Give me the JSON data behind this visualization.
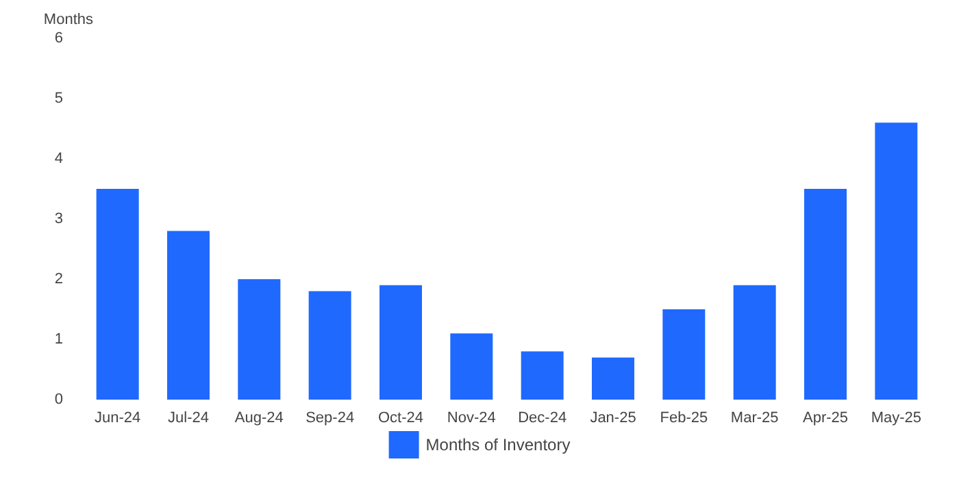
{
  "chart_data": {
    "type": "bar",
    "ylabel": "Months",
    "categories": [
      "Jun-24",
      "Jul-24",
      "Aug-24",
      "Sep-24",
      "Oct-24",
      "Nov-24",
      "Dec-24",
      "Jan-25",
      "Feb-25",
      "Mar-25",
      "Apr-25",
      "May-25"
    ],
    "series": [
      {
        "name": "Months of Inventory",
        "color": "#1f69ff",
        "values": [
          3.5,
          2.8,
          2.0,
          1.8,
          1.9,
          1.1,
          0.8,
          0.7,
          1.5,
          1.9,
          3.5,
          4.6
        ]
      }
    ],
    "ylim": [
      0,
      6
    ],
    "yticks": [
      0,
      1,
      2,
      3,
      4,
      5,
      6
    ],
    "grid": false,
    "legend": "bottom"
  }
}
